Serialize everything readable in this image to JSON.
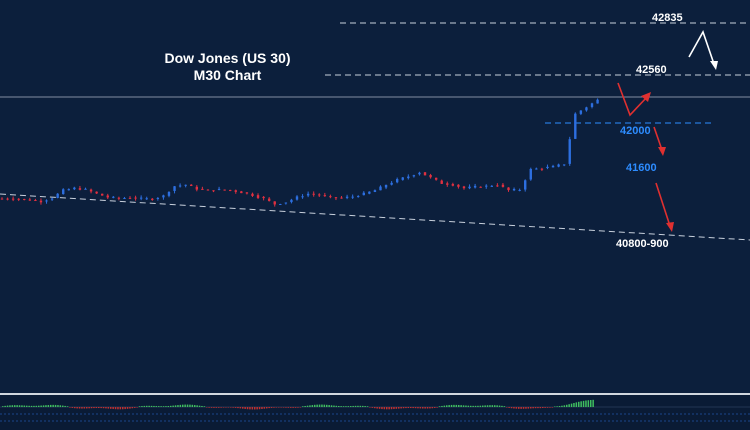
{
  "chart_data": {
    "type": "candlestick",
    "title": "Dow Jones (US 30)",
    "subtitle": "M30 Chart",
    "x_axis_labels_visible": false,
    "y_axis_labels_visible": false,
    "price_series_close_approx": [
      41180,
      41175,
      41160,
      41140,
      41190,
      41300,
      41330,
      41310,
      41250,
      41200,
      41185,
      41195,
      41180,
      41175,
      41220,
      41360,
      41380,
      41320,
      41300,
      41310,
      41300,
      41270,
      41230,
      41180,
      41100,
      41130,
      41200,
      41250,
      41230,
      41200,
      41190,
      41210,
      41250,
      41300,
      41380,
      41450,
      41500,
      41560,
      41480,
      41400,
      41380,
      41330,
      41350,
      41360,
      41380,
      41300,
      41310,
      41600,
      41620,
      41640,
      41680,
      42400,
      42500,
      42600
    ],
    "resistance_levels": [
      {
        "label": "42835",
        "style": "dashed",
        "color": "#ffffff"
      },
      {
        "label": "42560",
        "style": "dashed",
        "color": "#ffffff"
      },
      {
        "label": "",
        "style": "solid",
        "color": "#ffffff"
      }
    ],
    "support_levels": [
      {
        "label": "42000",
        "style": "dashed",
        "color": "#2d8cff"
      },
      {
        "label": "41600",
        "style": "none",
        "color": "#2d8cff"
      },
      {
        "label": "40800-900",
        "style": "dashed-trendline",
        "color": "#ffffff"
      }
    ],
    "projection_arrows": [
      {
        "color": "#e03030",
        "scenario": "pullback-then-up"
      },
      {
        "color": "#e03030",
        "scenario": "down-to-41600"
      },
      {
        "color": "#e03030",
        "scenario": "down-to-40800-900"
      },
      {
        "color": "#ffffff",
        "scenario": "up-to-42835-then-down"
      }
    ],
    "indicator": {
      "type": "histogram",
      "positive_color": "#3fbf5f",
      "negative_color": "#c03030"
    },
    "colors": {
      "background": "#0c1f3c",
      "bull_candle": "#2d6fe0",
      "bear_candle": "#e03040",
      "wick": "#ffffff"
    }
  }
}
